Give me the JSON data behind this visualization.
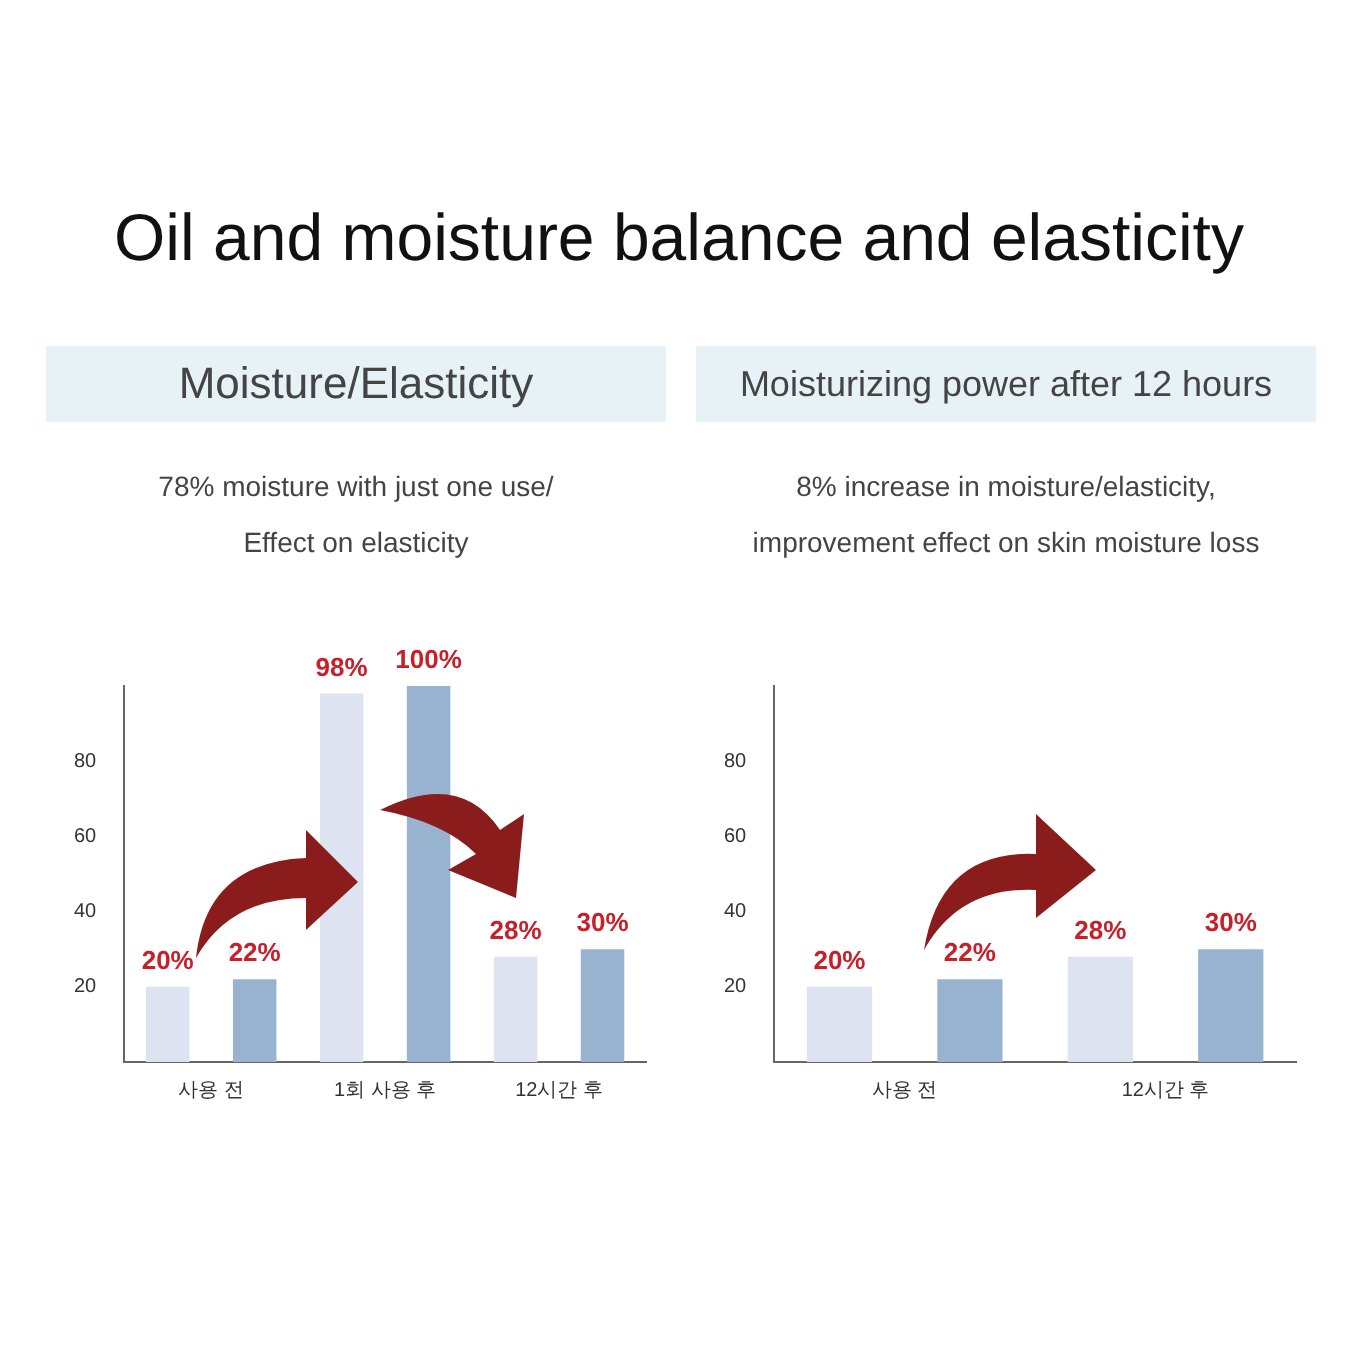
{
  "chart_data": [
    {
      "type": "bar",
      "title": "Moisture/Elasticity",
      "subtitle": "78% moisture with just one use/\nEffect on elasticity",
      "annotations": [
        "Oil and moisture balance and elasticity"
      ],
      "categories": [
        "사용 전",
        "1회 사용 후",
        "12시간 후"
      ],
      "series": [
        {
          "color": "#dde3f0",
          "values": [
            20,
            98,
            28
          ],
          "value_labels": [
            "20%",
            "98%",
            "28%"
          ]
        },
        {
          "color": "#98b3cf",
          "values": [
            22,
            100,
            30
          ],
          "value_labels": [
            "22%",
            "100%",
            "30%"
          ]
        }
      ],
      "ylim": [
        0,
        100
      ],
      "yticks": [
        20,
        40,
        60,
        80
      ]
    },
    {
      "type": "bar",
      "title": "Moisturizing power after 12 hours",
      "subtitle": "8% increase in moisture/elasticity,\nimprovement effect on skin moisture loss",
      "categories": [
        "사용 전",
        "12시간 후"
      ],
      "series": [
        {
          "color": "#dde3f0",
          "values": [
            20,
            28
          ],
          "value_labels": [
            "20%",
            "28%"
          ]
        },
        {
          "color": "#98b3cf",
          "values": [
            22,
            30
          ],
          "value_labels": [
            "22%",
            "30%"
          ]
        }
      ],
      "ylim": [
        0,
        100
      ],
      "yticks": [
        20,
        40,
        60,
        80
      ]
    }
  ]
}
